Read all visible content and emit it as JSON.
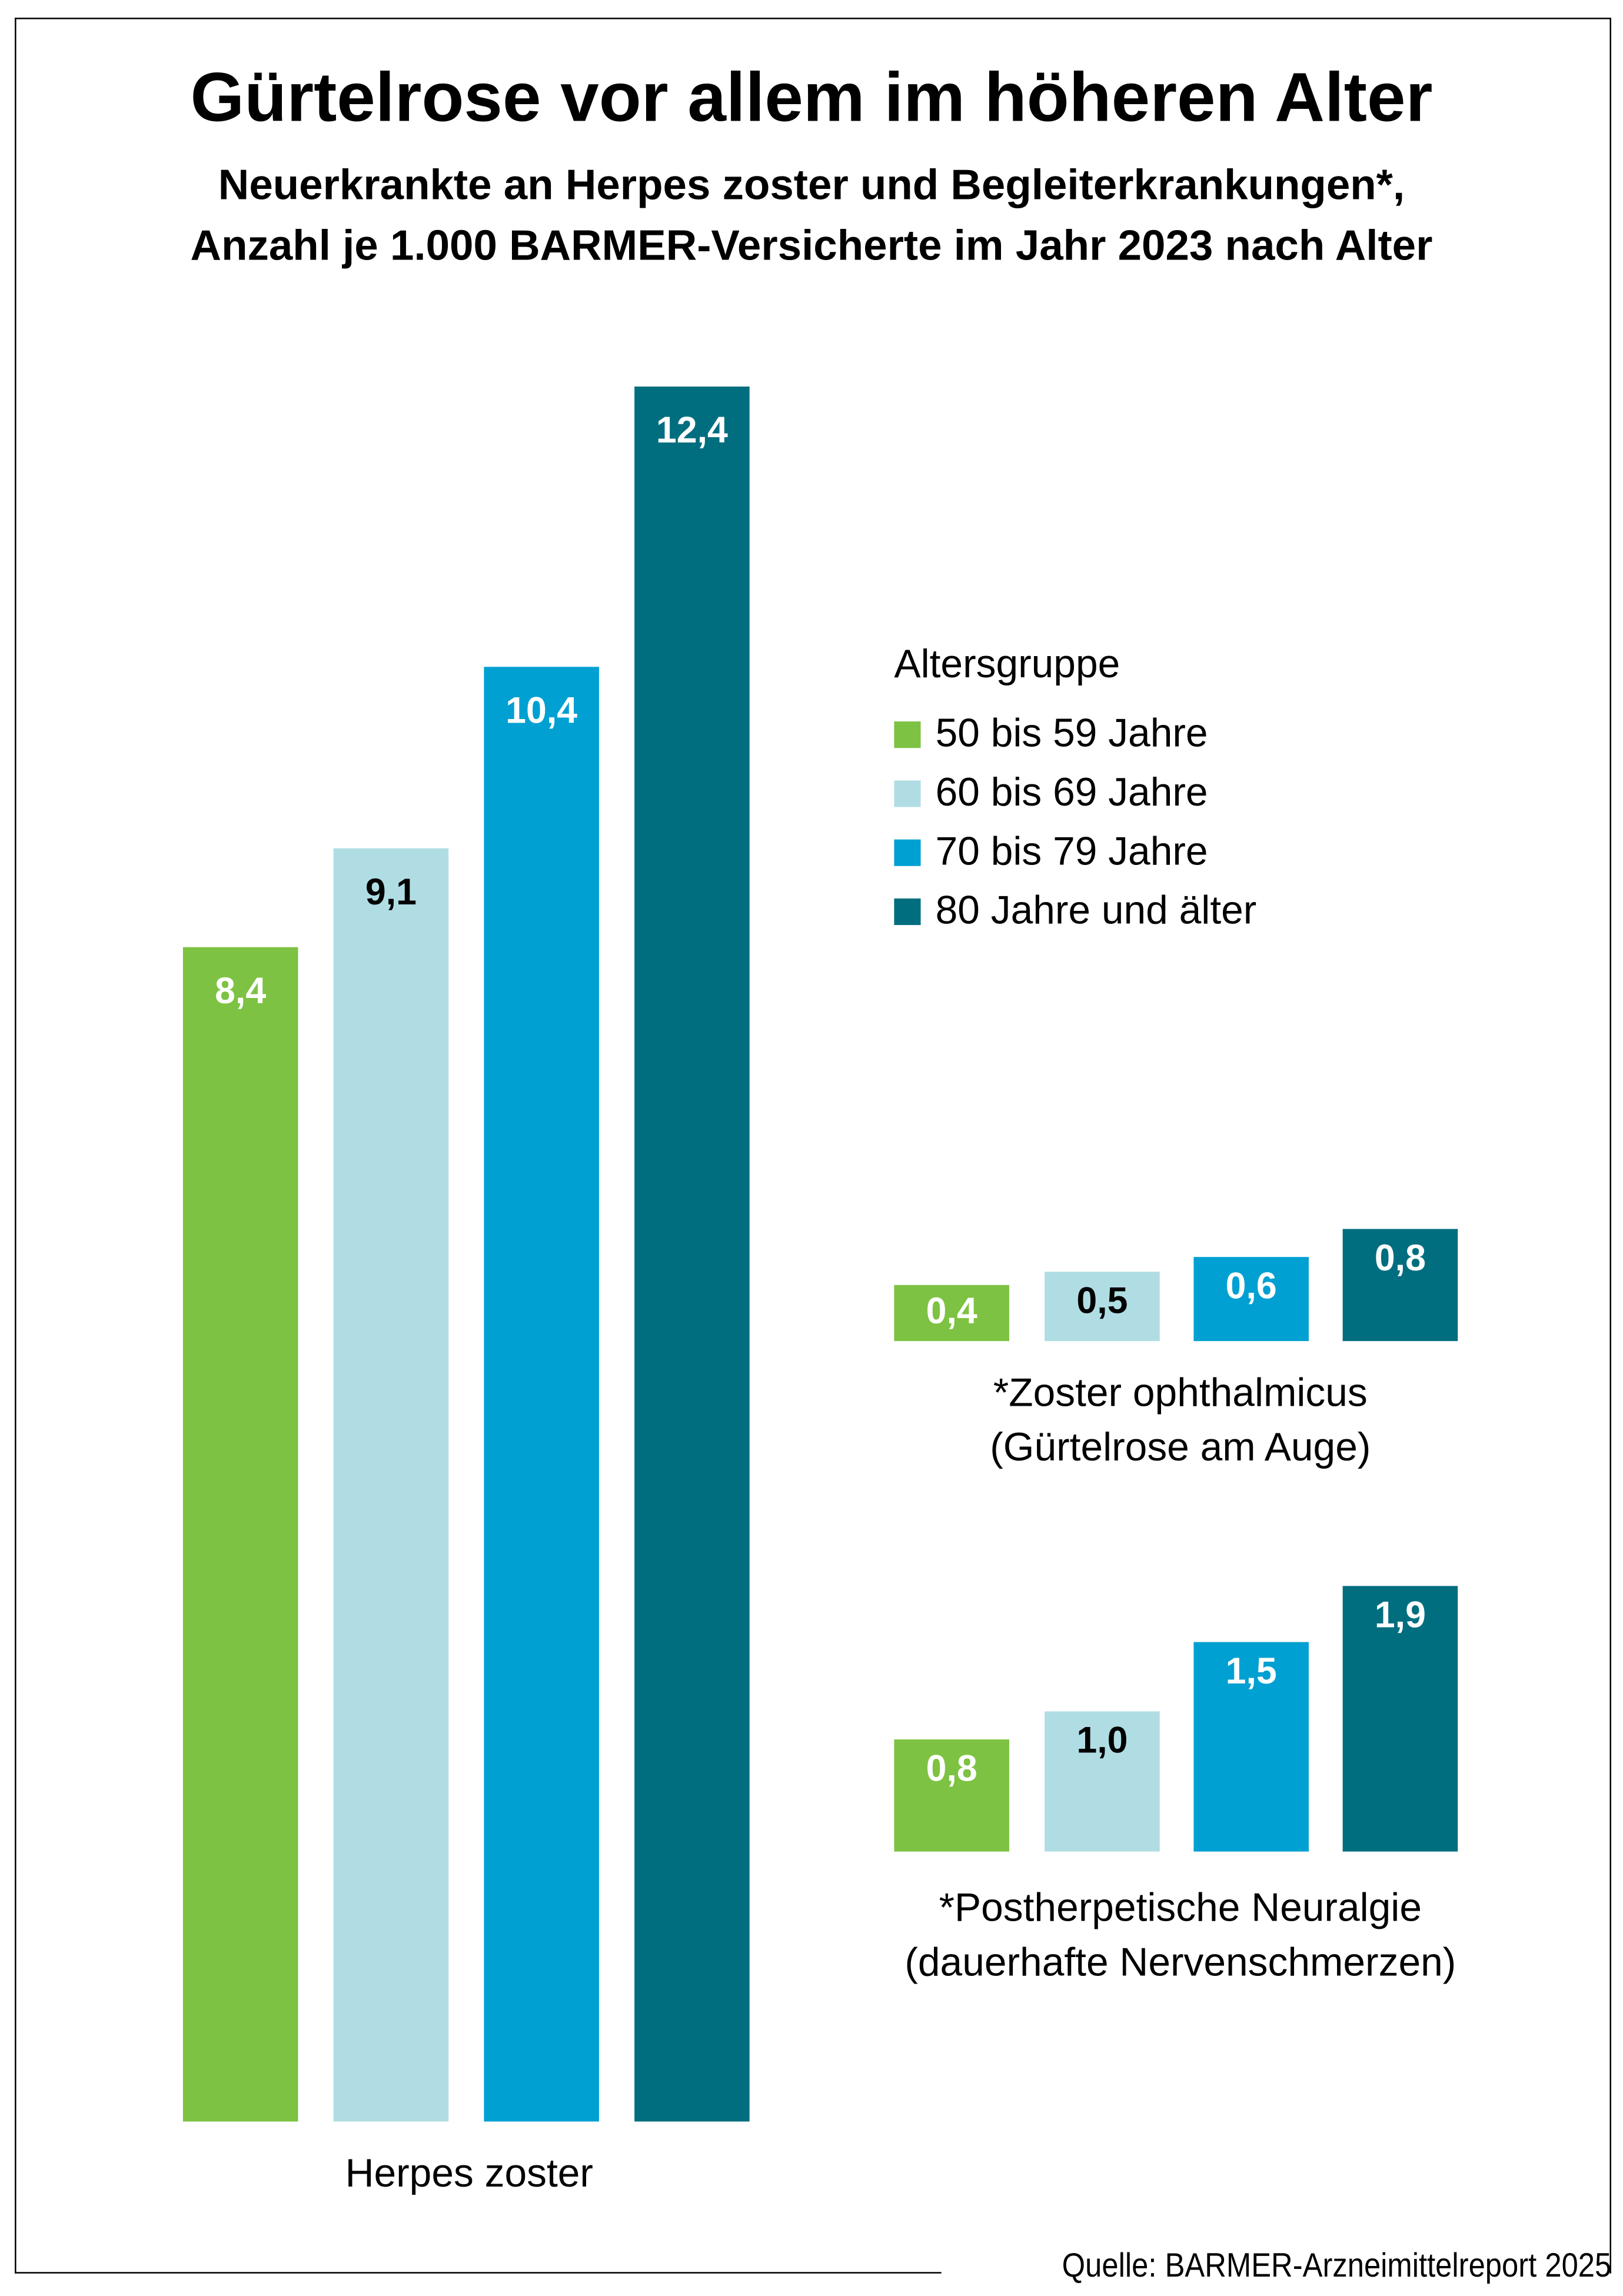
{
  "title": "Gürtelrose vor allem im höheren Alter",
  "subtitle_line1": "Neuerkrankte an Herpes zoster und Begleiterkrankungen*,",
  "subtitle_line2": "Anzahl je 1.000 BARMER-Versicherte im Jahr 2023 nach Alter",
  "legend": {
    "title": "Altersgruppe",
    "items": [
      "50 bis 59 Jahre",
      "60 bis 69 Jahre",
      "70 bis 79 Jahre",
      "80 Jahre und älter"
    ]
  },
  "colors": [
    "#7dc242",
    "#b0dde4",
    "#00a0d2",
    "#006e7f"
  ],
  "label_colors": [
    "#ffffff",
    "#000000",
    "#ffffff",
    "#ffffff"
  ],
  "chart_data": [
    {
      "type": "bar",
      "category": "Herpes zoster",
      "series": [
        {
          "name": "50 bis 59 Jahre",
          "value": 8.4,
          "label": "8,4"
        },
        {
          "name": "60 bis 69 Jahre",
          "value": 9.1,
          "label": "9,1"
        },
        {
          "name": "70 bis 79 Jahre",
          "value": 10.4,
          "label": "10,4"
        },
        {
          "name": "80 Jahre und älter",
          "value": 12.4,
          "label": "12,4"
        }
      ]
    },
    {
      "type": "bar",
      "category_line1": "*Zoster ophthalmicus",
      "category_line2": "(Gürtelrose am Auge)",
      "series": [
        {
          "name": "50 bis 59 Jahre",
          "value": 0.4,
          "label": "0,4"
        },
        {
          "name": "60 bis 69 Jahre",
          "value": 0.5,
          "label": "0,5"
        },
        {
          "name": "70 bis 79 Jahre",
          "value": 0.6,
          "label": "0,6"
        },
        {
          "name": "80 Jahre und älter",
          "value": 0.8,
          "label": "0,8"
        }
      ]
    },
    {
      "type": "bar",
      "category_line1": "*Postherpetische Neuralgie",
      "category_line2": "(dauerhafte Nervenschmerzen)",
      "series": [
        {
          "name": "50 bis 59 Jahre",
          "value": 0.8,
          "label": "0,8"
        },
        {
          "name": "60 bis 69 Jahre",
          "value": 1.0,
          "label": "1,0"
        },
        {
          "name": "70 bis 79 Jahre",
          "value": 1.5,
          "label": "1,5"
        },
        {
          "name": "80 Jahre und älter",
          "value": 1.9,
          "label": "1,9"
        }
      ]
    }
  ],
  "source": "Quelle: BARMER-Arzneimittelreport 2025"
}
